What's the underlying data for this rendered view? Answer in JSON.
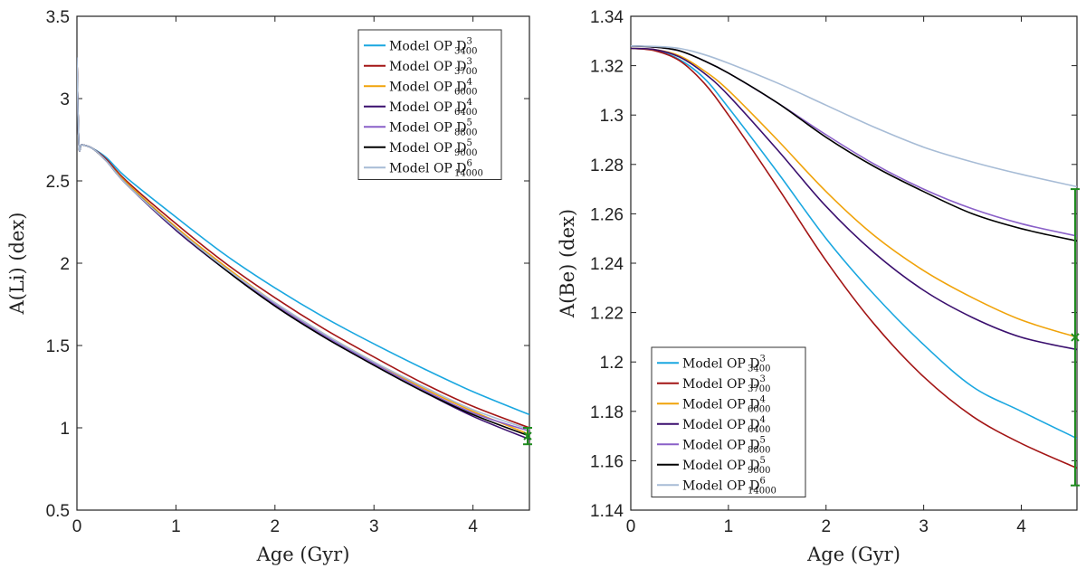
{
  "chart_data": [
    {
      "type": "line",
      "xlabel": "Age (Gyr)",
      "ylabel": "A(Li) (dex)",
      "xlim": [
        0,
        4.57
      ],
      "ylim": [
        0.5,
        3.5
      ],
      "xticks": [
        "0",
        "1",
        "2",
        "3",
        "4"
      ],
      "yticks": [
        "0.5",
        "1",
        "1.5",
        "2",
        "2.5",
        "3",
        "3.5"
      ],
      "legend_position": "top-right",
      "series": [
        {
          "name": "Model OP D",
          "sup": "3",
          "sub": "3400",
          "color": "#1aa7e0",
          "x": [
            0.0,
            0.02,
            0.05,
            0.15,
            0.3,
            0.5,
            1.0,
            1.5,
            2.0,
            2.5,
            3.0,
            3.5,
            4.0,
            4.57
          ],
          "y": [
            3.25,
            2.72,
            2.72,
            2.7,
            2.64,
            2.52,
            2.28,
            2.05,
            1.85,
            1.67,
            1.51,
            1.36,
            1.22,
            1.08
          ]
        },
        {
          "name": "Model OP D",
          "sup": "3",
          "sub": "3700",
          "color": "#a31515",
          "x": [
            0.0,
            0.02,
            0.05,
            0.15,
            0.3,
            0.5,
            1.0,
            1.5,
            2.0,
            2.5,
            3.0,
            3.5,
            4.0,
            4.57
          ],
          "y": [
            3.25,
            2.72,
            2.72,
            2.7,
            2.63,
            2.5,
            2.24,
            2.0,
            1.79,
            1.6,
            1.43,
            1.27,
            1.13,
            1.0
          ]
        },
        {
          "name": "Model OP D",
          "sup": "4",
          "sub": "6000",
          "color": "#f0a30a",
          "x": [
            0.0,
            0.02,
            0.05,
            0.15,
            0.3,
            0.5,
            1.0,
            1.5,
            2.0,
            2.5,
            3.0,
            3.5,
            4.0,
            4.57
          ],
          "y": [
            3.25,
            2.72,
            2.72,
            2.7,
            2.62,
            2.49,
            2.22,
            1.98,
            1.76,
            1.57,
            1.4,
            1.24,
            1.1,
            0.96
          ]
        },
        {
          "name": "Model OP D",
          "sup": "4",
          "sub": "6400",
          "color": "#3a0f6e",
          "x": [
            0.0,
            0.02,
            0.05,
            0.15,
            0.3,
            0.5,
            1.0,
            1.5,
            2.0,
            2.5,
            3.0,
            3.5,
            4.0,
            4.57
          ],
          "y": [
            3.25,
            2.72,
            2.72,
            2.7,
            2.62,
            2.48,
            2.2,
            1.96,
            1.74,
            1.55,
            1.38,
            1.22,
            1.07,
            0.93
          ]
        },
        {
          "name": "Model OP D",
          "sup": "5",
          "sub": "8800",
          "color": "#8a60c8",
          "x": [
            0.0,
            0.02,
            0.05,
            0.15,
            0.3,
            0.5,
            1.0,
            1.5,
            2.0,
            2.5,
            3.0,
            3.5,
            4.0,
            4.57
          ],
          "y": [
            3.25,
            2.72,
            2.72,
            2.7,
            2.62,
            2.48,
            2.21,
            1.97,
            1.75,
            1.56,
            1.39,
            1.23,
            1.09,
            0.98
          ]
        },
        {
          "name": "Model OP D",
          "sup": "5",
          "sub": "9000",
          "color": "#000000",
          "x": [
            0.0,
            0.02,
            0.05,
            0.15,
            0.3,
            0.5,
            1.0,
            1.5,
            2.0,
            2.5,
            3.0,
            3.5,
            4.0,
            4.57
          ],
          "y": [
            3.25,
            2.72,
            2.72,
            2.7,
            2.62,
            2.48,
            2.21,
            1.96,
            1.74,
            1.55,
            1.38,
            1.22,
            1.08,
            0.95
          ]
        },
        {
          "name": "Model OP D",
          "sup": "6",
          "sub": "14000",
          "color": "#a7bcd6",
          "x": [
            0.0,
            0.02,
            0.05,
            0.15,
            0.3,
            0.5,
            1.0,
            1.5,
            2.0,
            2.5,
            3.0,
            3.5,
            4.0,
            4.57
          ],
          "y": [
            3.25,
            2.72,
            2.72,
            2.7,
            2.62,
            2.48,
            2.21,
            1.97,
            1.76,
            1.57,
            1.4,
            1.25,
            1.11,
            0.99
          ]
        }
      ],
      "observation": {
        "x": 4.57,
        "y": 0.95,
        "err": 0.05,
        "color": "#1f8a1f"
      }
    },
    {
      "type": "line",
      "xlabel": "Age (Gyr)",
      "ylabel": "A(Be) (dex)",
      "xlim": [
        0,
        4.57
      ],
      "ylim": [
        1.14,
        1.34
      ],
      "xticks": [
        "0",
        "1",
        "2",
        "3",
        "4"
      ],
      "yticks": [
        "1.14",
        "1.16",
        "1.18",
        "1.2",
        "1.22",
        "1.24",
        "1.26",
        "1.28",
        "1.3",
        "1.32",
        "1.34"
      ],
      "legend_position": "bottom-left",
      "series": [
        {
          "name": "Model OP D",
          "sup": "3",
          "sub": "3400",
          "color": "#1aa7e0",
          "x": [
            0.0,
            0.25,
            0.5,
            0.75,
            1.0,
            1.5,
            2.0,
            2.5,
            3.0,
            3.5,
            4.0,
            4.57
          ],
          "y": [
            1.327,
            1.3262,
            1.3225,
            1.315,
            1.303,
            1.277,
            1.25,
            1.227,
            1.207,
            1.19,
            1.18,
            1.169
          ]
        },
        {
          "name": "Model OP D",
          "sup": "3",
          "sub": "3700",
          "color": "#a31515",
          "x": [
            0.0,
            0.25,
            0.5,
            0.75,
            1.0,
            1.5,
            2.0,
            2.5,
            3.0,
            3.5,
            4.0,
            4.57
          ],
          "y": [
            1.327,
            1.326,
            1.322,
            1.313,
            1.3,
            1.271,
            1.241,
            1.215,
            1.194,
            1.178,
            1.167,
            1.157
          ]
        },
        {
          "name": "Model OP D",
          "sup": "4",
          "sub": "6000",
          "color": "#f0a30a",
          "x": [
            0.0,
            0.25,
            0.5,
            0.75,
            1.0,
            1.5,
            2.0,
            2.5,
            3.0,
            3.5,
            4.0,
            4.57
          ],
          "y": [
            1.327,
            1.3265,
            1.324,
            1.318,
            1.31,
            1.29,
            1.269,
            1.251,
            1.237,
            1.226,
            1.217,
            1.21
          ]
        },
        {
          "name": "Model OP D",
          "sup": "4",
          "sub": "6400",
          "color": "#3a0f6e",
          "x": [
            0.0,
            0.25,
            0.5,
            0.75,
            1.0,
            1.5,
            2.0,
            2.5,
            3.0,
            3.5,
            4.0,
            4.57
          ],
          "y": [
            1.327,
            1.3265,
            1.3235,
            1.317,
            1.308,
            1.286,
            1.263,
            1.244,
            1.229,
            1.218,
            1.21,
            1.205
          ]
        },
        {
          "name": "Model OP D",
          "sup": "5",
          "sub": "8800",
          "color": "#8a60c8",
          "x": [
            0.0,
            0.25,
            0.5,
            0.75,
            1.0,
            1.5,
            2.0,
            2.5,
            3.0,
            3.5,
            4.0,
            4.57
          ],
          "y": [
            1.328,
            1.3275,
            1.326,
            1.322,
            1.317,
            1.305,
            1.292,
            1.28,
            1.27,
            1.262,
            1.256,
            1.251
          ]
        },
        {
          "name": "Model OP D",
          "sup": "5",
          "sub": "9000",
          "color": "#000000",
          "x": [
            0.0,
            0.25,
            0.5,
            0.75,
            1.0,
            1.5,
            2.0,
            2.5,
            3.0,
            3.5,
            4.0,
            4.57
          ],
          "y": [
            1.328,
            1.3275,
            1.326,
            1.322,
            1.317,
            1.305,
            1.291,
            1.279,
            1.269,
            1.26,
            1.254,
            1.249
          ]
        },
        {
          "name": "Model OP D",
          "sup": "6",
          "sub": "14000",
          "color": "#a7bcd6",
          "x": [
            0.0,
            0.25,
            0.5,
            0.75,
            1.0,
            1.5,
            2.0,
            2.5,
            3.0,
            3.5,
            4.0,
            4.57
          ],
          "y": [
            1.328,
            1.3278,
            1.327,
            1.3245,
            1.321,
            1.313,
            1.304,
            1.295,
            1.287,
            1.281,
            1.276,
            1.271
          ]
        }
      ],
      "observation": {
        "x": 4.57,
        "y": 1.21,
        "err": 0.06,
        "color": "#1f8a1f"
      }
    }
  ]
}
